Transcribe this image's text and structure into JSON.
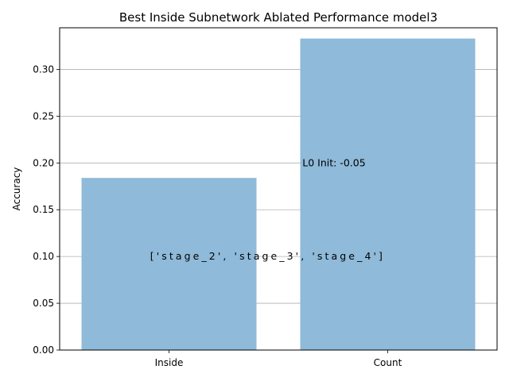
{
  "chart_data": {
    "type": "bar",
    "title": "Best Inside Subnetwork Ablated Performance model3",
    "xlabel": "",
    "ylabel": "Accuracy",
    "categories": [
      "Inside",
      "Count"
    ],
    "values": [
      0.184,
      0.333
    ],
    "ylim": [
      0,
      0.3445
    ],
    "yticks": [
      0.0,
      0.05,
      0.1,
      0.15,
      0.2,
      0.25,
      0.3
    ],
    "ytick_labels": [
      "0.00",
      "0.05",
      "0.10",
      "0.15",
      "0.20",
      "0.25",
      "0.30"
    ],
    "grid": "y",
    "bar_color": "#8fbad9",
    "annotations": [
      {
        "text": "['stage_2', 'stage_3', 'stage_4']",
        "x": 0.55,
        "y": 0.1
      },
      {
        "text": "L0 Init: -0.05",
        "x": 0.61,
        "y": 0.2
      }
    ]
  }
}
